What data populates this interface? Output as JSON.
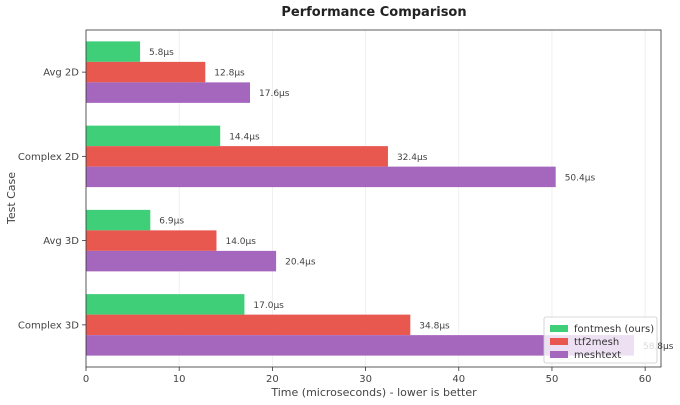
{
  "chart_data": {
    "type": "bar",
    "orientation": "horizontal",
    "title": "Performance Comparison",
    "xlabel": "Time (microseconds) - lower is better",
    "ylabel": "Test Case",
    "categories": [
      "Avg 2D",
      "Complex 2D",
      "Avg 3D",
      "Complex 3D"
    ],
    "series": [
      {
        "name": "fontmesh (ours)",
        "color": "#3fcf78",
        "values": [
          5.8,
          14.4,
          6.9,
          17.0
        ],
        "labels": [
          "5.8µs",
          "14.4µs",
          "6.9µs",
          "17.0µs"
        ]
      },
      {
        "name": "ttf2mesh",
        "color": "#e8584e",
        "values": [
          12.8,
          32.4,
          14.0,
          34.8
        ],
        "labels": [
          "12.8µs",
          "32.4µs",
          "14.0µs",
          "34.8µs"
        ]
      },
      {
        "name": "meshtext",
        "color": "#a566be",
        "values": [
          17.6,
          50.4,
          20.4,
          58.8
        ],
        "labels": [
          "17.6µs",
          "50.4µs",
          "20.4µs",
          "58.8µs"
        ]
      }
    ],
    "xlim": [
      0,
      61.7
    ],
    "xticks": [
      0,
      10,
      20,
      30,
      40,
      50,
      60
    ],
    "xtick_labels": [
      "0",
      "10",
      "20",
      "30",
      "40",
      "50",
      "60"
    ],
    "grid": true,
    "legend_position": "bottom-right"
  }
}
